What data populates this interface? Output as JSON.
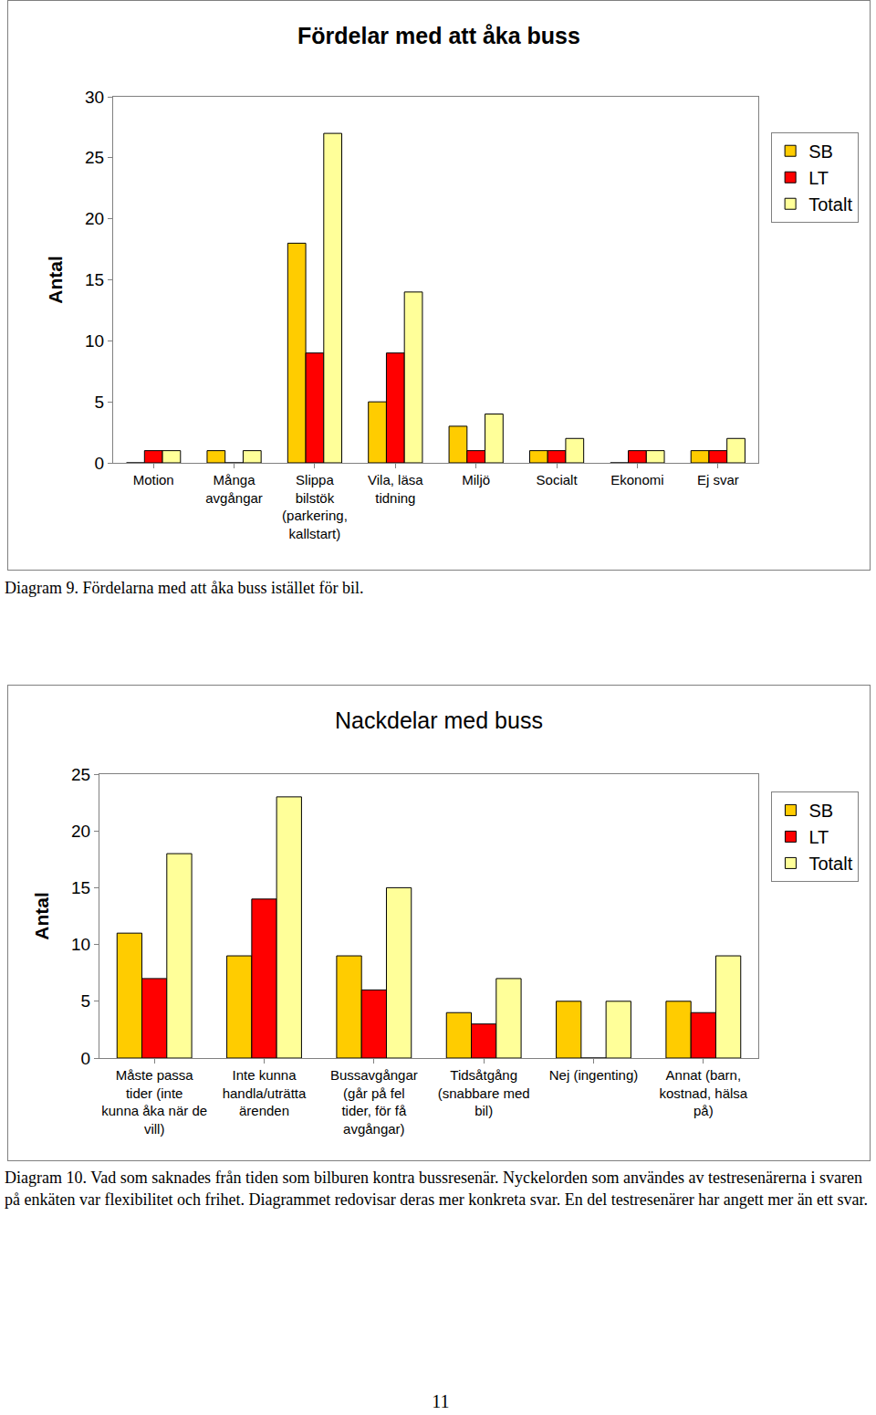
{
  "chart_data": [
    {
      "type": "bar",
      "title": "Fördelar med att åka buss",
      "y_label": "Antal",
      "categories": [
        "Motion",
        "Många avgångar",
        "Slippa bilstök (parkering, kallstart)",
        "Vila, läsa tidning",
        "Miljö",
        "Socialt",
        "Ekonomi",
        "Ej svar"
      ],
      "series": [
        {
          "name": "SB",
          "color": "#ffcc00",
          "values": [
            0,
            1,
            18,
            5,
            3,
            1,
            0,
            1
          ]
        },
        {
          "name": "LT",
          "color": "#ff0000",
          "values": [
            1,
            0,
            9,
            9,
            1,
            1,
            1,
            1
          ]
        },
        {
          "name": "Totalt",
          "color": "#ffff99",
          "values": [
            1,
            1,
            27,
            14,
            4,
            2,
            1,
            2
          ]
        }
      ],
      "ylim": [
        0,
        30
      ],
      "yticks": [
        0,
        5,
        10,
        15,
        20,
        25,
        30
      ],
      "grid": false,
      "legend": "right"
    },
    {
      "type": "bar",
      "title": "Nackdelar med buss",
      "y_label": "Antal",
      "categories": [
        "Måste passa tider (inte kunna åka när de vill)",
        "Inte kunna handla/uträtta ärenden",
        "Bussavgångar (går på fel tider, för få avgångar)",
        "Tidsåtgång (snabbare med bil)",
        "Nej (ingenting)",
        "Annat (barn, kostnad, hälsa på)"
      ],
      "series": [
        {
          "name": "SB",
          "color": "#ffcc00",
          "values": [
            11,
            9,
            9,
            4,
            5,
            5
          ]
        },
        {
          "name": "LT",
          "color": "#ff0000",
          "values": [
            7,
            14,
            6,
            3,
            0,
            4
          ]
        },
        {
          "name": "Totalt",
          "color": "#ffff99",
          "values": [
            18,
            23,
            15,
            7,
            5,
            9
          ]
        }
      ],
      "ylim": [
        0,
        25
      ],
      "yticks": [
        0,
        5,
        10,
        15,
        20,
        25
      ],
      "grid": false,
      "legend": "right"
    }
  ],
  "captions": [
    "Diagram 9. Fördelarna med att åka buss istället för bil.",
    "Diagram 10. Vad som saknades från tiden som bilburen kontra bussresenär. Nyckelorden som användes av testresenärerna i svaren på enkäten var flexibilitet och frihet. Diagrammet redovisar deras mer konkreta svar. En del testresenärer har angett mer än ett svar."
  ],
  "page_number": "11"
}
